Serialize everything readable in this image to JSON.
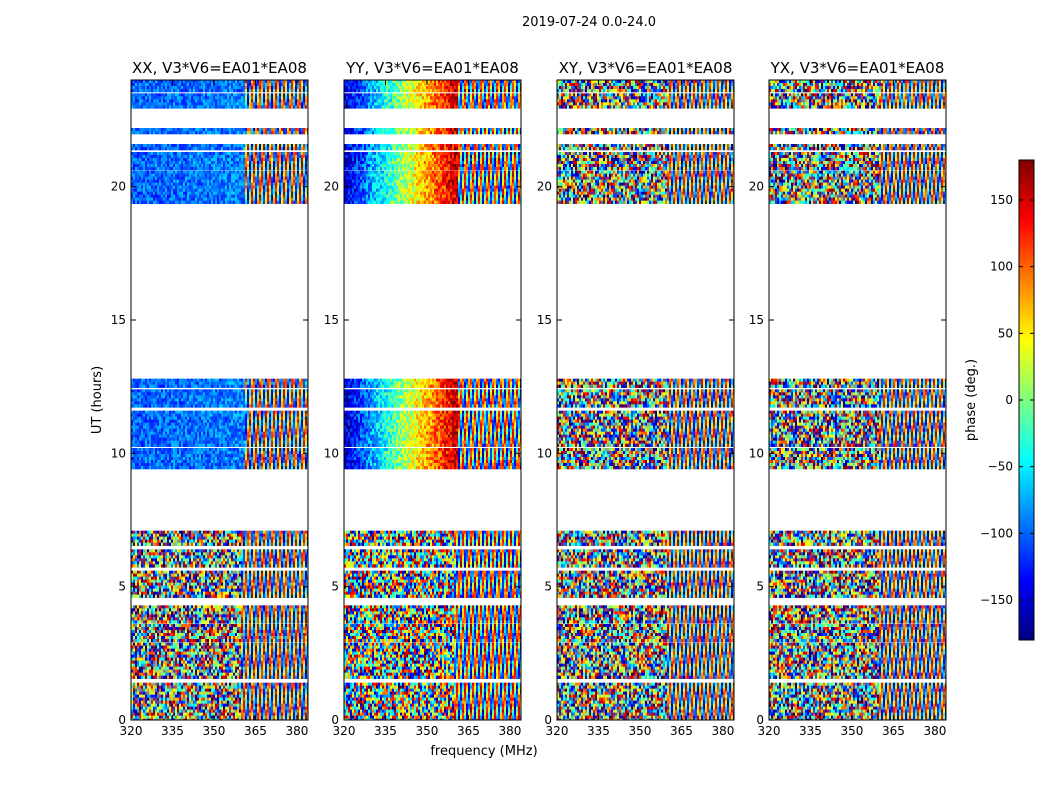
{
  "figure_title": "2019-07-24 0.0-24.0",
  "xlabel": "frequency (MHz)",
  "ylabel": "UT (hours)",
  "colorbar_label": "phase (deg.)",
  "colorbar_ticks": [
    150,
    100,
    50,
    0,
    -50,
    -100,
    -150
  ],
  "colorbar_tick_labels": [
    "150",
    "100",
    "50",
    "0",
    "−50",
    "−100",
    "−150"
  ],
  "colorbar_range": [
    -180,
    180
  ],
  "colormap": [
    "#00007f",
    "#0000ff",
    "#007fff",
    "#00ffff",
    "#7fff7f",
    "#ffff00",
    "#ff7f00",
    "#ff0000",
    "#7f0000"
  ],
  "chart_data": [
    {
      "type": "heatmap",
      "title": "XX, V3*V6=EA01*EA08",
      "xlim": [
        320,
        384
      ],
      "ylim": [
        0,
        24
      ],
      "xticks": [
        320,
        335,
        350,
        365,
        380
      ],
      "yticks": [
        0,
        5,
        10,
        15,
        20
      ],
      "data_bands_ut": [
        [
          0,
          1.4
        ],
        [
          1.6,
          2.9
        ],
        [
          3.0,
          3.6
        ],
        [
          3.7,
          4.3
        ],
        [
          4.6,
          5.6
        ],
        [
          5.8,
          6.4
        ],
        [
          6.6,
          7.1
        ],
        [
          9.5,
          10.2
        ],
        [
          10.3,
          11.6
        ],
        [
          11.8,
          12.4
        ],
        [
          12.5,
          12.8
        ],
        [
          19.4,
          20.6
        ],
        [
          20.7,
          21.3
        ],
        [
          21.4,
          21.6
        ],
        [
          22.0,
          22.2
        ],
        [
          23.0,
          23.5
        ],
        [
          23.6,
          24.0
        ]
      ],
      "phase_pattern": "XX: coherent phase near -90 to -120 deg below 360 MHz at 9-13h and 19-24h; noisy phase with fringe pattern at 0-7h"
    },
    {
      "type": "heatmap",
      "title": "YY, V3*V6=EA01*EA08",
      "xlim": [
        320,
        384
      ],
      "ylim": [
        0,
        24
      ],
      "xticks": [
        320,
        335,
        350,
        365,
        380
      ],
      "yticks": [
        0,
        5,
        10,
        15,
        20
      ],
      "data_bands_ut": [
        [
          0,
          1.4
        ],
        [
          1.6,
          2.9
        ],
        [
          3.0,
          3.6
        ],
        [
          3.7,
          4.3
        ],
        [
          4.6,
          5.6
        ],
        [
          5.8,
          6.4
        ],
        [
          6.6,
          7.1
        ],
        [
          9.5,
          10.2
        ],
        [
          10.3,
          11.6
        ],
        [
          11.8,
          12.4
        ],
        [
          12.5,
          12.8
        ],
        [
          19.4,
          20.6
        ],
        [
          20.7,
          21.3
        ],
        [
          21.4,
          21.6
        ],
        [
          22.0,
          22.2
        ],
        [
          23.0,
          23.5
        ],
        [
          23.6,
          24.0
        ]
      ],
      "phase_pattern": "YY: phase gradient from about -150 deg at 320 MHz to about +150 deg near 360 MHz at 9-13h and 19-24h; noisy with fringes at 0-7h"
    },
    {
      "type": "heatmap",
      "title": "XY, V3*V6=EA01*EA08",
      "xlim": [
        320,
        384
      ],
      "ylim": [
        0,
        24
      ],
      "xticks": [
        320,
        335,
        350,
        365,
        380
      ],
      "yticks": [
        0,
        5,
        10,
        15,
        20
      ],
      "data_bands_ut": [
        [
          0,
          1.4
        ],
        [
          1.6,
          2.9
        ],
        [
          3.0,
          3.6
        ],
        [
          3.7,
          4.3
        ],
        [
          4.6,
          5.6
        ],
        [
          5.8,
          6.4
        ],
        [
          6.6,
          7.1
        ],
        [
          9.5,
          10.2
        ],
        [
          10.3,
          11.6
        ],
        [
          11.8,
          12.4
        ],
        [
          12.5,
          12.8
        ],
        [
          19.4,
          20.6
        ],
        [
          20.7,
          21.3
        ],
        [
          21.4,
          21.6
        ],
        [
          22.0,
          22.2
        ],
        [
          23.0,
          23.5
        ],
        [
          23.6,
          24.0
        ]
      ],
      "phase_pattern": "XY: mostly random phase (noise) with fringe patterns at higher frequencies"
    },
    {
      "type": "heatmap",
      "title": "YX, V3*V6=EA01*EA08",
      "xlim": [
        320,
        384
      ],
      "ylim": [
        0,
        24
      ],
      "xticks": [
        320,
        335,
        350,
        365,
        380
      ],
      "yticks": [
        0,
        5,
        10,
        15,
        20
      ],
      "data_bands_ut": [
        [
          0,
          1.4
        ],
        [
          1.6,
          2.9
        ],
        [
          3.0,
          3.6
        ],
        [
          3.7,
          4.3
        ],
        [
          4.6,
          5.6
        ],
        [
          5.8,
          6.4
        ],
        [
          6.6,
          7.1
        ],
        [
          9.5,
          10.2
        ],
        [
          10.3,
          11.6
        ],
        [
          11.8,
          12.4
        ],
        [
          12.5,
          12.8
        ],
        [
          19.4,
          20.6
        ],
        [
          20.7,
          21.3
        ],
        [
          21.4,
          21.6
        ],
        [
          22.0,
          22.2
        ],
        [
          23.0,
          23.5
        ],
        [
          23.6,
          24.0
        ]
      ],
      "phase_pattern": "YX: mostly random phase (noise) with fringe patterns at higher frequencies"
    }
  ]
}
